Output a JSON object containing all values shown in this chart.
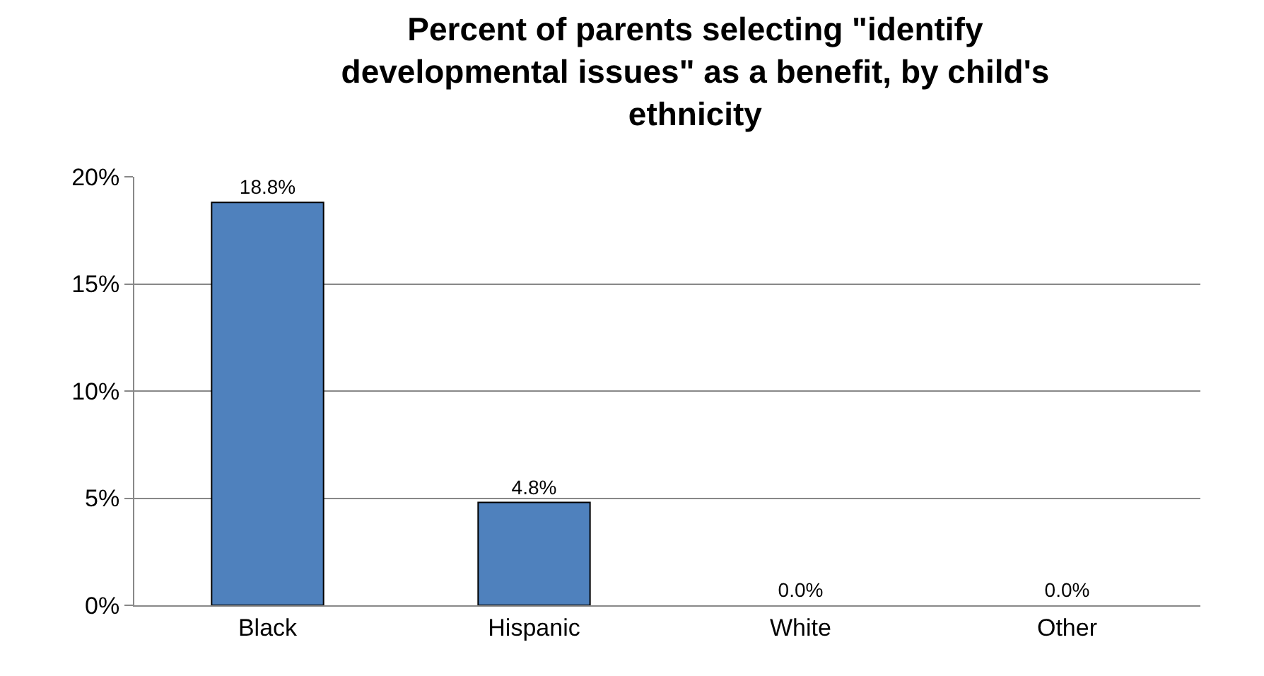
{
  "chart_data": {
    "type": "bar",
    "title": "Percent of parents selecting \"identify developmental issues\" as a benefit, by child's ethnicity",
    "categories": [
      "Black",
      "Hispanic",
      "White",
      "Other"
    ],
    "values": [
      18.8,
      4.8,
      0,
      0
    ],
    "value_labels": [
      "18.8%",
      "4.8%",
      "0.0%",
      "0.0%"
    ],
    "color": "#4f81bd",
    "ylim": [
      0,
      20
    ],
    "yticks": [
      {
        "value": 0,
        "label": "0%"
      },
      {
        "value": 5,
        "label": "5%"
      },
      {
        "value": 10,
        "label": "10%"
      },
      {
        "value": 15,
        "label": "15%"
      },
      {
        "value": 20,
        "label": "20%"
      }
    ],
    "grid": "y",
    "legend": false
  }
}
